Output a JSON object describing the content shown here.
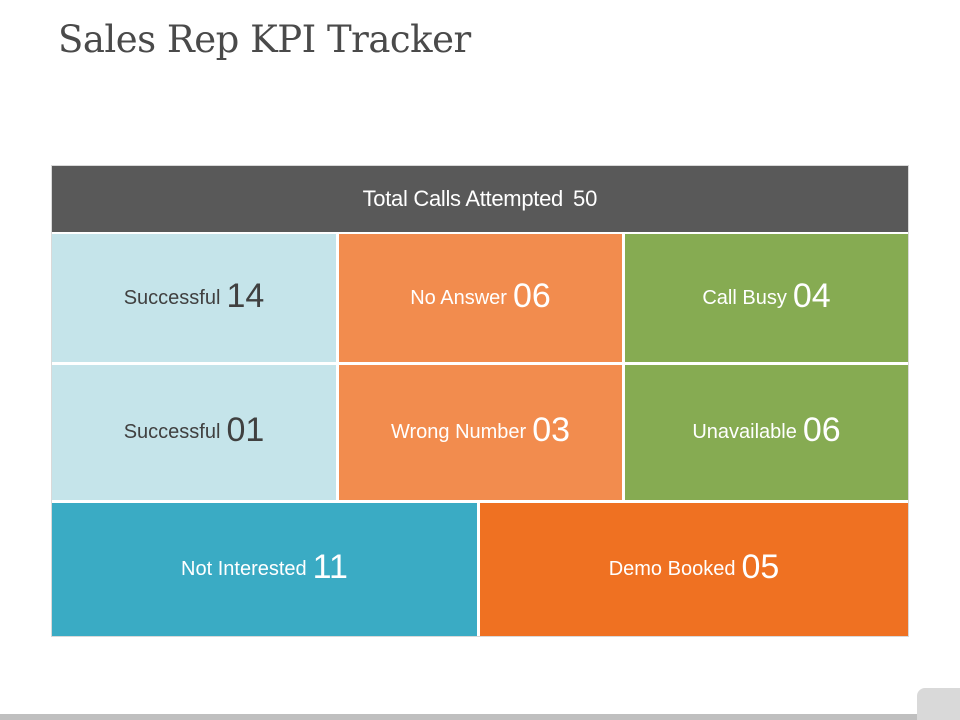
{
  "title": "Sales Rep KPI Tracker",
  "header": {
    "label": "Total Calls Attempted",
    "value": "50"
  },
  "cells": [
    {
      "label": "Successful",
      "value": "14"
    },
    {
      "label": "No Answer",
      "value": "06"
    },
    {
      "label": "Call Busy",
      "value": "04"
    },
    {
      "label": "Successful",
      "value": "01"
    },
    {
      "label": "Wrong Number",
      "value": "03"
    },
    {
      "label": "Unavailable",
      "value": "06"
    },
    {
      "label": "Not Interested",
      "value": "11"
    },
    {
      "label": "Demo Booked",
      "value": "05"
    }
  ],
  "colors": {
    "header": "#595959",
    "light_blue": "#c5e4ea",
    "orange": "#f28c4e",
    "green": "#86ab52",
    "teal": "#3aabc4",
    "dark_orange": "#ef7122"
  }
}
